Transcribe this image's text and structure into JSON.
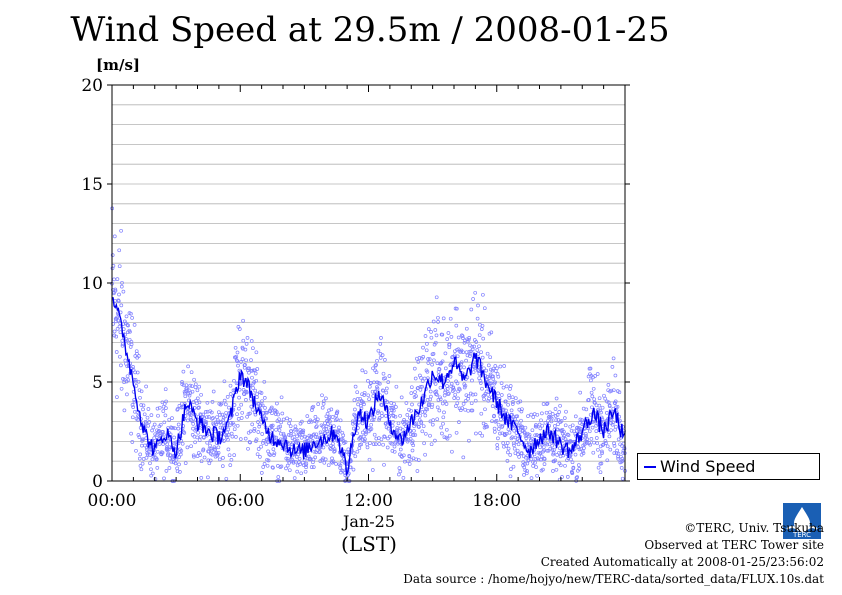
{
  "title": "Wind Speed at 29.5m / 2008-01-25",
  "unit_label": "[m/s]",
  "legend": {
    "label": "Wind Speed"
  },
  "credits": {
    "line1": "©TERC, Univ. Tsukuba",
    "line2": "Observed at TERC Tower site",
    "line3": "Created Automatically at 2008-01-25/23:56:02",
    "line4": "Data source : /home/hojyo/new/TERC-data/sorted_data/FLUX.10s.dat"
  },
  "logo_text": "TERC",
  "colors": {
    "line": "#0000ee",
    "points": "#8080ff",
    "grid": "#b4b4b4"
  },
  "chart_data": {
    "type": "line",
    "title": "Wind Speed at 29.5m / 2008-01-25",
    "ylabel": "[m/s]",
    "xlabel": "(LST)",
    "date_label": "Jan-25",
    "ylim": [
      0,
      20
    ],
    "xlim_hours": [
      0,
      24
    ],
    "y_ticks": [
      "0",
      "5",
      "10",
      "15",
      "20"
    ],
    "x_ticks": [
      {
        "hour": 0,
        "label": "00:00"
      },
      {
        "hour": 6,
        "label": "06:00"
      },
      {
        "hour": 12,
        "label": "12:00"
      },
      {
        "hour": 18,
        "label": "18:00"
      }
    ],
    "grid": true,
    "legend_position": "right",
    "series": [
      {
        "name": "Wind Speed",
        "x": [
          0,
          0.5,
          1,
          1.5,
          2,
          2.5,
          3,
          3.5,
          4,
          4.5,
          5,
          5.5,
          6,
          6.5,
          7,
          7.5,
          8,
          8.5,
          9,
          9.5,
          10,
          10.5,
          11,
          11.5,
          12,
          12.5,
          13,
          13.5,
          14,
          14.5,
          15,
          15.5,
          16,
          16.5,
          17,
          17.5,
          18,
          18.5,
          19,
          19.5,
          20,
          20.5,
          21,
          21.5,
          22,
          22.5,
          23,
          23.5,
          24
        ],
        "y": [
          9.5,
          7.5,
          5,
          2.5,
          1.5,
          2.5,
          1.5,
          4,
          3,
          2.5,
          2.2,
          3,
          5.5,
          4.5,
          3,
          2.2,
          2,
          1.5,
          1.5,
          2,
          2.2,
          2.5,
          0.5,
          3.5,
          3,
          4.5,
          3,
          2,
          3,
          4,
          5.5,
          5,
          6,
          5,
          6.3,
          5,
          4,
          3,
          2.5,
          1.5,
          2.2,
          2.5,
          1.8,
          1.5,
          2.5,
          3.5,
          2.5,
          3.5,
          2
        ]
      }
    ]
  }
}
